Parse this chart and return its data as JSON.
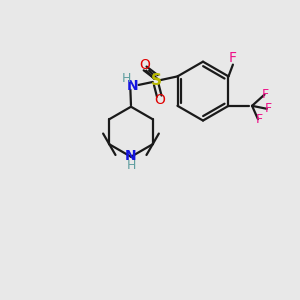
{
  "bg": "#e8e8e8",
  "bond_color": "#1a1a1a",
  "F_color": "#ee1289",
  "N_color": "#1414e0",
  "NH_color": "#1414e0",
  "H_color": "#5f9ea0",
  "S_color": "#b8b800",
  "O_color": "#e00000",
  "lw": 1.6,
  "figsize": [
    3.0,
    3.0
  ],
  "dpi": 100,
  "xlim": [
    0,
    10
  ],
  "ylim": [
    0,
    10
  ]
}
